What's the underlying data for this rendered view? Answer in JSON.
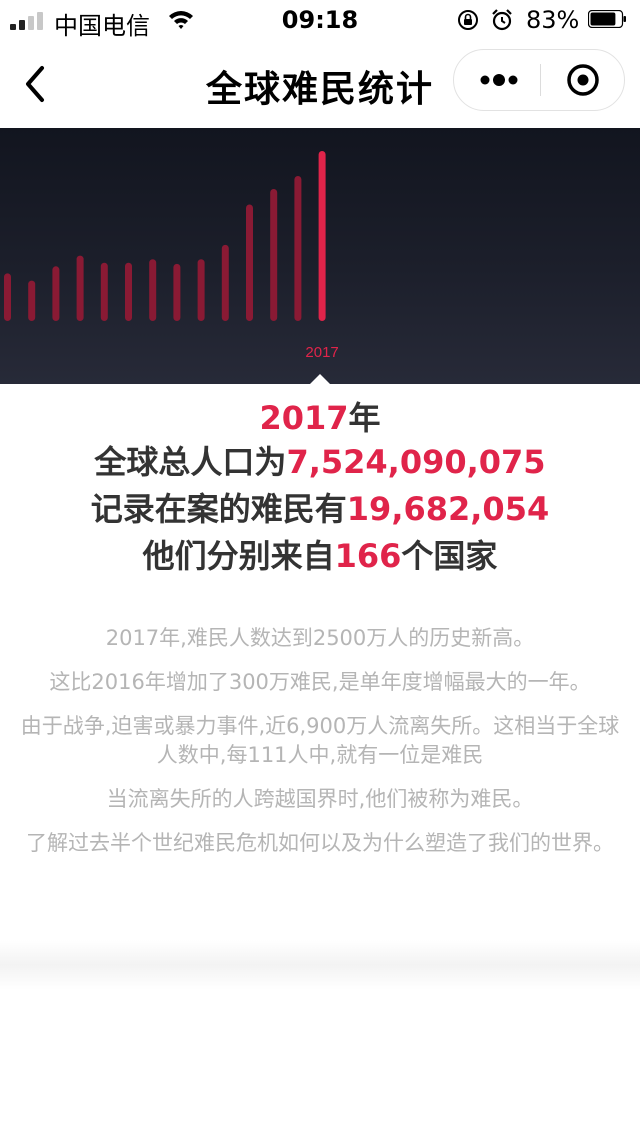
{
  "status_bar": {
    "carrier": "中国电信",
    "time": "09:18",
    "battery": "83%",
    "battery_level": 0.83
  },
  "nav": {
    "title": "全球难民统计",
    "back_icon": "chevron-left-icon",
    "more_icon": "more-dots-icon",
    "close_icon": "circle-target-icon"
  },
  "chart_data": {
    "type": "bar",
    "values": [
      4,
      3.4,
      4.6,
      5.5,
      4.9,
      4.9,
      5.2,
      4.8,
      5.2,
      6.4,
      9.8,
      11.1,
      12.2,
      14.3
    ],
    "highlight_label": "2017",
    "highlight_index": 13,
    "colors": {
      "bar": "#8a1a34",
      "highlight": "#e0244a"
    }
  },
  "stats": {
    "year": "2017",
    "year_suffix": "年",
    "population_label": "全球总人口为",
    "population": "7,524,090,075",
    "refugees_label": "记录在案的难民有",
    "refugees": "19,682,054",
    "countries_prefix": "他们分别来自",
    "countries": "166",
    "countries_suffix": "个国家"
  },
  "description": [
    "2017年,难民人数达到2500万人的历史新高。",
    "这比2016年增加了300万难民,是单年度增幅最大的一年。",
    "由于战争,迫害或暴力事件,近6,900万人流离失所。这相当于全球人数中,每111人中,就有一位是难民",
    "当流离失所的人跨越国界时,他们被称为难民。",
    "了解过去半个世纪难民危机如何以及为什么塑造了我们的世界。"
  ]
}
